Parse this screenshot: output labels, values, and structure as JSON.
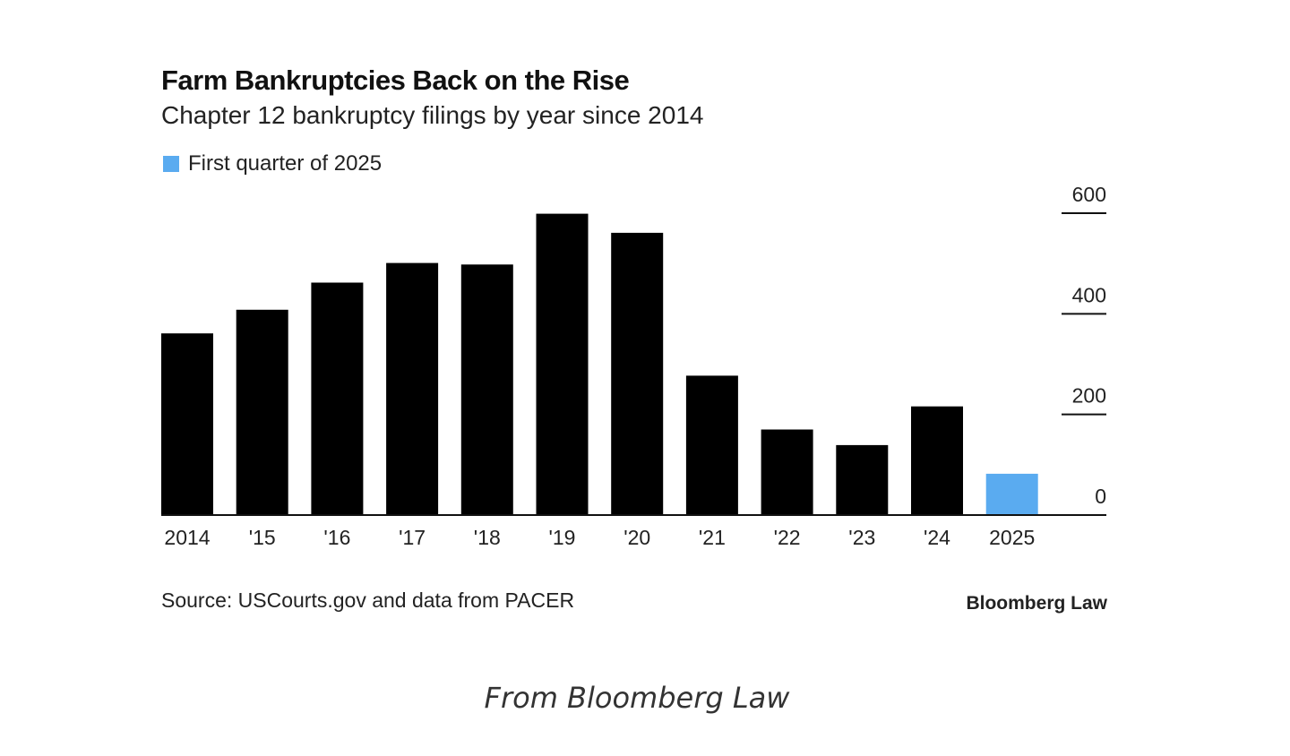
{
  "chart_data": {
    "type": "bar",
    "title": "Farm Bankruptcies Back on the Rise",
    "subtitle": "Chapter 12 bankruptcy filings by year since 2014",
    "legend": [
      {
        "label": "First quarter of 2025",
        "color": "#5aabf0"
      }
    ],
    "categories": [
      "2014",
      "'15",
      "'16",
      "'17",
      "'18",
      "'19",
      "'20",
      "'21",
      "'22",
      "'23",
      "'24",
      "2025"
    ],
    "values": [
      361,
      408,
      462,
      501,
      498,
      599,
      561,
      277,
      170,
      139,
      216,
      82
    ],
    "bar_colors": [
      "#000000",
      "#000000",
      "#000000",
      "#000000",
      "#000000",
      "#000000",
      "#000000",
      "#000000",
      "#000000",
      "#000000",
      "#000000",
      "#5aabf0"
    ],
    "yticks": [
      0,
      200,
      400,
      600
    ],
    "ylim": [
      0,
      600
    ],
    "yaxis_position": "right",
    "xlabel": "",
    "ylabel": "",
    "grid": false
  },
  "source": "Source: USCourts.gov and data from PACER",
  "brand": "Bloomberg Law",
  "caption": "From Bloomberg Law"
}
